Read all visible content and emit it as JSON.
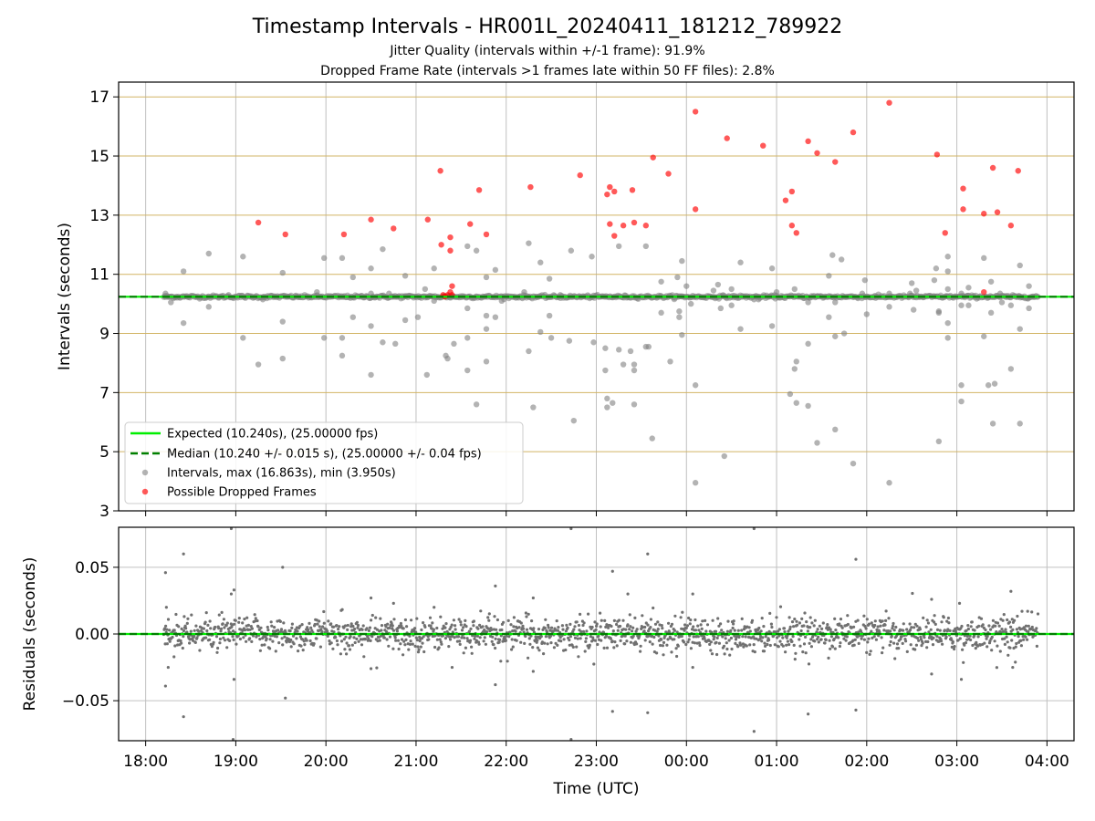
{
  "figure": {
    "title": "Timestamp Intervals - HR001L_20240411_181212_789922",
    "subtitle1": "Jitter Quality (intervals within +/-1 frame): 91.9%",
    "subtitle2": "Dropped Frame Rate (intervals >1 frames late within 50 FF files): 2.8%"
  },
  "colors": {
    "expected": "#00ee00",
    "median": "#007f00",
    "intervals": "#808080",
    "dropped": "#ff0000",
    "hgrid_top": "#d2b464",
    "grid": "#c0c0c0"
  },
  "chart_data": [
    {
      "type": "scatter",
      "ylabel": "Intervals (seconds)",
      "x_axis": "Time (UTC), hours since 18:00 (continuing past midnight)",
      "xlim": [
        -0.3,
        10.3
      ],
      "ylim": [
        3,
        17.5
      ],
      "yticks": [
        3,
        5,
        7,
        9,
        11,
        13,
        15,
        17
      ],
      "grid": true,
      "legend_position": "lower-left",
      "legend": [
        "Expected (10.240s), (25.00000 fps)",
        "Median (10.240 +/- 0.015 s), (25.00000 +/- 0.04 fps)",
        "Intervals, max (16.863s), min (3.950s)",
        "Possible Dropped Frames"
      ],
      "expected_interval": 10.24,
      "median_interval": 10.24,
      "dense_band": {
        "x_start": 0.2,
        "x_end": 9.9,
        "y": 10.24
      },
      "series": [
        {
          "name": "Intervals, max (16.863s), min (3.950s)",
          "points": [
            [
              0.22,
              10.35
            ],
            [
              0.28,
              10.05
            ],
            [
              0.42,
              11.1
            ],
            [
              0.42,
              9.35
            ],
            [
              0.7,
              11.7
            ],
            [
              0.7,
              9.9
            ],
            [
              0.92,
              10.3
            ],
            [
              1.08,
              11.6
            ],
            [
              1.08,
              8.85
            ],
            [
              1.25,
              7.95
            ],
            [
              1.52,
              11.05
            ],
            [
              1.52,
              9.4
            ],
            [
              1.52,
              8.15
            ],
            [
              1.98,
              11.55
            ],
            [
              1.98,
              8.85
            ],
            [
              2.18,
              11.55
            ],
            [
              2.18,
              8.85
            ],
            [
              2.18,
              8.25
            ],
            [
              2.3,
              10.9
            ],
            [
              2.3,
              9.55
            ],
            [
              2.5,
              11.2
            ],
            [
              2.5,
              10.35
            ],
            [
              2.5,
              9.25
            ],
            [
              2.5,
              7.6
            ],
            [
              2.63,
              11.85
            ],
            [
              2.63,
              8.7
            ],
            [
              2.77,
              8.65
            ],
            [
              2.88,
              10.95
            ],
            [
              2.88,
              9.45
            ],
            [
              3.02,
              9.55
            ],
            [
              3.1,
              10.5
            ],
            [
              3.12,
              7.6
            ],
            [
              3.2,
              11.2
            ],
            [
              3.2,
              10.1
            ],
            [
              3.33,
              8.25
            ],
            [
              3.35,
              8.15
            ],
            [
              3.42,
              8.65
            ],
            [
              3.57,
              11.95
            ],
            [
              3.57,
              9.85
            ],
            [
              3.57,
              8.85
            ],
            [
              3.57,
              7.75
            ],
            [
              3.67,
              11.8
            ],
            [
              3.67,
              6.6
            ],
            [
              3.78,
              10.9
            ],
            [
              3.78,
              9.6
            ],
            [
              3.78,
              9.15
            ],
            [
              3.78,
              8.05
            ],
            [
              3.88,
              11.15
            ],
            [
              3.88,
              9.55
            ],
            [
              4.25,
              12.05
            ],
            [
              4.25,
              8.4
            ],
            [
              4.3,
              6.5
            ],
            [
              4.38,
              11.4
            ],
            [
              4.38,
              9.05
            ],
            [
              4.48,
              10.85
            ],
            [
              4.48,
              9.6
            ],
            [
              4.5,
              8.85
            ],
            [
              4.7,
              8.75
            ],
            [
              4.72,
              11.8
            ],
            [
              4.75,
              6.05
            ],
            [
              4.95,
              11.6
            ],
            [
              4.97,
              8.7
            ],
            [
              5.1,
              8.5
            ],
            [
              5.1,
              7.75
            ],
            [
              5.12,
              6.8
            ],
            [
              5.12,
              6.5
            ],
            [
              5.18,
              6.65
            ],
            [
              5.25,
              11.95
            ],
            [
              5.25,
              8.45
            ],
            [
              5.3,
              7.95
            ],
            [
              5.38,
              8.4
            ],
            [
              5.42,
              7.95
            ],
            [
              5.42,
              7.75
            ],
            [
              5.42,
              6.6
            ],
            [
              5.55,
              11.95
            ],
            [
              5.55,
              8.55
            ],
            [
              5.58,
              8.55
            ],
            [
              5.62,
              5.45
            ],
            [
              5.72,
              10.75
            ],
            [
              5.72,
              9.7
            ],
            [
              5.82,
              8.05
            ],
            [
              5.9,
              10.9
            ],
            [
              5.92,
              9.55
            ],
            [
              5.92,
              9.75
            ],
            [
              5.95,
              11.45
            ],
            [
              5.95,
              8.95
            ],
            [
              6.0,
              10.6
            ],
            [
              6.05,
              10.0
            ],
            [
              6.1,
              7.25
            ],
            [
              6.1,
              3.95
            ],
            [
              6.3,
              10.45
            ],
            [
              6.35,
              10.65
            ],
            [
              6.38,
              9.85
            ],
            [
              6.42,
              4.85
            ],
            [
              6.5,
              10.5
            ],
            [
              6.5,
              9.95
            ],
            [
              6.6,
              11.4
            ],
            [
              6.6,
              9.15
            ],
            [
              6.75,
              10.15
            ],
            [
              6.95,
              11.2
            ],
            [
              6.95,
              9.25
            ],
            [
              7.15,
              6.95
            ],
            [
              7.2,
              10.5
            ],
            [
              7.2,
              7.8
            ],
            [
              7.22,
              6.65
            ],
            [
              7.22,
              8.05
            ],
            [
              7.35,
              10.05
            ],
            [
              7.35,
              8.65
            ],
            [
              7.35,
              6.55
            ],
            [
              7.45,
              10.25
            ],
            [
              7.45,
              5.3
            ],
            [
              7.58,
              10.95
            ],
            [
              7.58,
              9.55
            ],
            [
              7.62,
              11.65
            ],
            [
              7.65,
              10.05
            ],
            [
              7.65,
              8.9
            ],
            [
              7.65,
              5.75
            ],
            [
              7.72,
              11.5
            ],
            [
              7.75,
              9.0
            ],
            [
              7.85,
              4.6
            ],
            [
              7.95,
              10.35
            ],
            [
              7.98,
              10.8
            ],
            [
              8.0,
              9.65
            ],
            [
              8.25,
              10.35
            ],
            [
              8.25,
              9.9
            ],
            [
              8.25,
              3.95
            ],
            [
              8.48,
              10.35
            ],
            [
              8.5,
              10.7
            ],
            [
              8.52,
              9.8
            ],
            [
              8.55,
              10.45
            ],
            [
              8.75,
              10.8
            ],
            [
              8.77,
              11.2
            ],
            [
              8.8,
              9.75
            ],
            [
              8.8,
              9.7
            ],
            [
              8.8,
              5.35
            ],
            [
              8.9,
              11.6
            ],
            [
              8.9,
              11.1
            ],
            [
              8.9,
              10.5
            ],
            [
              8.9,
              9.35
            ],
            [
              8.9,
              8.85
            ],
            [
              9.05,
              10.35
            ],
            [
              9.05,
              9.95
            ],
            [
              9.05,
              7.25
            ],
            [
              9.05,
              6.7
            ],
            [
              9.13,
              10.55
            ],
            [
              9.13,
              9.95
            ],
            [
              9.3,
              11.55
            ],
            [
              9.3,
              8.9
            ],
            [
              9.35,
              7.25
            ],
            [
              9.38,
              10.75
            ],
            [
              9.38,
              9.7
            ],
            [
              9.4,
              5.95
            ],
            [
              9.42,
              7.3
            ],
            [
              9.48,
              10.35
            ],
            [
              9.5,
              10.05
            ],
            [
              9.6,
              7.8
            ],
            [
              9.6,
              9.95
            ],
            [
              9.7,
              11.3
            ],
            [
              9.7,
              10.25
            ],
            [
              9.7,
              9.15
            ],
            [
              9.7,
              5.95
            ],
            [
              9.8,
              10.6
            ],
            [
              9.8,
              9.85
            ],
            [
              8.1,
              10.2
            ],
            [
              7.0,
              10.4
            ],
            [
              6.8,
              10.15
            ],
            [
              4.6,
              10.3
            ],
            [
              4.2,
              10.4
            ],
            [
              3.95,
              10.1
            ],
            [
              2.7,
              10.35
            ],
            [
              1.9,
              10.4
            ],
            [
              1.3,
              10.15
            ]
          ]
        },
        {
          "name": "Possible Dropped Frames",
          "points": [
            [
              1.25,
              12.75
            ],
            [
              1.55,
              12.35
            ],
            [
              2.2,
              12.35
            ],
            [
              2.5,
              12.85
            ],
            [
              2.75,
              12.55
            ],
            [
              3.13,
              12.85
            ],
            [
              3.27,
              14.5
            ],
            [
              3.28,
              12.0
            ],
            [
              3.38,
              12.25
            ],
            [
              3.38,
              11.8
            ],
            [
              3.6,
              12.7
            ],
            [
              3.7,
              13.85
            ],
            [
              3.78,
              12.35
            ],
            [
              4.27,
              13.95
            ],
            [
              4.82,
              14.35
            ],
            [
              5.12,
              13.7
            ],
            [
              5.15,
              13.95
            ],
            [
              5.15,
              12.7
            ],
            [
              5.2,
              13.8
            ],
            [
              5.2,
              12.3
            ],
            [
              5.3,
              12.65
            ],
            [
              5.4,
              13.85
            ],
            [
              5.42,
              12.75
            ],
            [
              5.55,
              12.65
            ],
            [
              5.63,
              14.95
            ],
            [
              5.8,
              14.4
            ],
            [
              6.1,
              16.5
            ],
            [
              6.1,
              13.2
            ],
            [
              6.45,
              15.6
            ],
            [
              6.85,
              15.35
            ],
            [
              7.1,
              13.5
            ],
            [
              7.17,
              13.8
            ],
            [
              7.17,
              12.65
            ],
            [
              7.22,
              12.4
            ],
            [
              7.35,
              15.5
            ],
            [
              7.45,
              15.1
            ],
            [
              7.65,
              14.8
            ],
            [
              7.85,
              15.8
            ],
            [
              8.25,
              16.8
            ],
            [
              8.78,
              15.05
            ],
            [
              8.87,
              12.4
            ],
            [
              9.07,
              13.9
            ],
            [
              9.07,
              13.2
            ],
            [
              9.3,
              13.05
            ],
            [
              9.3,
              10.4
            ],
            [
              9.4,
              14.6
            ],
            [
              9.45,
              13.1
            ],
            [
              9.6,
              12.65
            ],
            [
              9.68,
              14.5
            ],
            [
              3.3,
              10.3
            ],
            [
              3.32,
              10.25
            ],
            [
              3.35,
              10.3
            ],
            [
              3.38,
              10.4
            ],
            [
              3.4,
              10.3
            ],
            [
              3.4,
              10.6
            ]
          ]
        }
      ]
    },
    {
      "type": "scatter",
      "ylabel": "Residuals (seconds)",
      "xlabel": "Time (UTC)",
      "xlim": [
        -0.3,
        10.3
      ],
      "ylim": [
        -0.08,
        0.08
      ],
      "yticks": [
        -0.05,
        0.0,
        0.05
      ],
      "ytick_labels": [
        "−0.05",
        "0.00",
        "0.05"
      ],
      "xticks": [
        0,
        1,
        2,
        3,
        4,
        5,
        6,
        7,
        8,
        9,
        10
      ],
      "xtick_labels": [
        "18:00",
        "19:00",
        "20:00",
        "21:00",
        "22:00",
        "23:00",
        "00:00",
        "01:00",
        "02:00",
        "03:00",
        "04:00"
      ],
      "grid": true,
      "residual_band": {
        "x_start": 0.2,
        "x_end": 9.9,
        "sigma": 0.006
      },
      "outliers": [
        [
          0.22,
          0.046
        ],
        [
          0.22,
          -0.039
        ],
        [
          0.23,
          0.02
        ],
        [
          0.25,
          -0.025
        ],
        [
          0.42,
          0.06
        ],
        [
          0.42,
          -0.062
        ],
        [
          0.95,
          0.079
        ],
        [
          0.95,
          0.03
        ],
        [
          0.98,
          0.033
        ],
        [
          0.98,
          -0.034
        ],
        [
          0.97,
          -0.079
        ],
        [
          1.52,
          0.05
        ],
        [
          1.55,
          -0.048
        ],
        [
          2.5,
          0.027
        ],
        [
          2.5,
          -0.026
        ],
        [
          2.75,
          0.023
        ],
        [
          3.2,
          0.02
        ],
        [
          3.4,
          -0.025
        ],
        [
          3.88,
          0.036
        ],
        [
          3.88,
          -0.038
        ],
        [
          4.3,
          0.027
        ],
        [
          4.3,
          -0.028
        ],
        [
          4.72,
          0.079
        ],
        [
          4.72,
          -0.079
        ],
        [
          5.18,
          0.047
        ],
        [
          5.18,
          -0.058
        ],
        [
          5.35,
          0.03
        ],
        [
          5.57,
          0.06
        ],
        [
          5.57,
          -0.059
        ],
        [
          6.07,
          0.03
        ],
        [
          6.07,
          -0.025
        ],
        [
          6.75,
          0.079
        ],
        [
          6.75,
          -0.073
        ],
        [
          7.35,
          -0.06
        ],
        [
          7.88,
          0.056
        ],
        [
          7.88,
          -0.057
        ],
        [
          8.72,
          0.026
        ],
        [
          8.72,
          -0.03
        ],
        [
          9.05,
          -0.034
        ],
        [
          9.03,
          0.023
        ],
        [
          9.6,
          0.032
        ],
        [
          9.62,
          -0.025
        ]
      ]
    }
  ]
}
